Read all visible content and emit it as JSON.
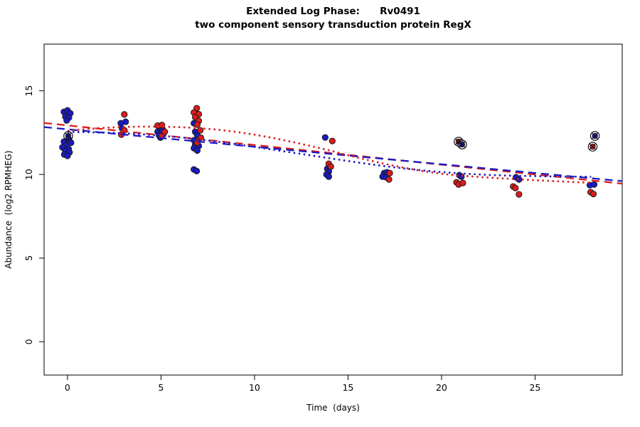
{
  "chart_data": {
    "type": "scatter",
    "title": "Extended Log Phase:      Rv0491",
    "subtitle": "two component sensory transduction protein RegX",
    "xlabel": "Time  (days)",
    "ylabel": "Abundance  (log2 RPMHEG)",
    "xlim": [
      -1.25,
      29.66
    ],
    "ylim": [
      -1.99,
      17.79
    ],
    "x_ticks": [
      0,
      5,
      10,
      15,
      20,
      25
    ],
    "y_ticks": [
      0,
      5,
      10,
      15
    ],
    "grid": false,
    "legend": "none",
    "colors": {
      "red": "#dc1c1c",
      "blue": "#1a1ac4",
      "darkred": "#8b1a1a",
      "point_stroke": "#1a1a1a",
      "axis": "#000000"
    },
    "series": [
      {
        "name": "blue-points",
        "color_key": "blue",
        "points": [
          [
            -0.19,
            13.74
          ],
          [
            0.0,
            13.83
          ],
          [
            0.15,
            13.66
          ],
          [
            -0.11,
            13.45
          ],
          [
            0.08,
            13.4
          ],
          [
            -0.04,
            13.23
          ],
          [
            0.08,
            12.08
          ],
          [
            -0.19,
            11.96
          ],
          [
            0.19,
            11.9
          ],
          [
            -0.08,
            11.74
          ],
          [
            -0.27,
            11.62
          ],
          [
            0.06,
            11.53
          ],
          [
            -0.11,
            11.4
          ],
          [
            0.11,
            11.32
          ],
          [
            -0.17,
            11.19
          ],
          [
            0.0,
            11.11
          ],
          [
            3.11,
            13.15
          ],
          [
            2.85,
            13.06
          ],
          [
            2.92,
            12.74
          ],
          [
            4.93,
            12.78
          ],
          [
            5.09,
            12.7
          ],
          [
            4.82,
            12.55
          ],
          [
            5.01,
            12.48
          ],
          [
            5.12,
            12.4
          ],
          [
            4.9,
            12.33
          ],
          [
            5.05,
            12.6
          ],
          [
            4.97,
            12.2
          ],
          [
            6.76,
            13.06
          ],
          [
            6.83,
            12.55
          ],
          [
            6.94,
            12.34
          ],
          [
            6.76,
            12.04
          ],
          [
            6.83,
            11.79
          ],
          [
            7.02,
            11.7
          ],
          [
            6.76,
            11.57
          ],
          [
            6.94,
            11.43
          ],
          [
            6.76,
            10.3
          ],
          [
            6.91,
            10.2
          ],
          [
            13.78,
            12.21
          ],
          [
            13.89,
            10.34
          ],
          [
            13.97,
            10.17
          ],
          [
            13.85,
            10.0
          ],
          [
            13.97,
            9.87
          ],
          [
            16.93,
            10.08
          ],
          [
            17.08,
            10.13
          ],
          [
            16.85,
            9.87
          ],
          [
            17.04,
            9.83
          ],
          [
            20.95,
            9.96
          ],
          [
            21.06,
            9.87
          ],
          [
            23.98,
            9.83
          ],
          [
            24.14,
            9.7
          ],
          [
            27.93,
            9.36
          ],
          [
            28.16,
            9.4
          ]
        ]
      },
      {
        "name": "red-points",
        "color_key": "red",
        "points": [
          [
            3.04,
            13.59
          ],
          [
            3.04,
            12.64
          ],
          [
            2.88,
            12.38
          ],
          [
            4.82,
            12.92
          ],
          [
            5.05,
            12.95
          ],
          [
            5.2,
            12.55
          ],
          [
            5.01,
            12.28
          ],
          [
            6.91,
            13.96
          ],
          [
            6.76,
            13.7
          ],
          [
            7.02,
            13.6
          ],
          [
            6.83,
            13.42
          ],
          [
            7.02,
            13.2
          ],
          [
            6.94,
            12.98
          ],
          [
            7.1,
            12.64
          ],
          [
            7.13,
            12.2
          ],
          [
            6.94,
            11.9
          ],
          [
            14.16,
            12.0
          ],
          [
            13.97,
            10.64
          ],
          [
            14.08,
            10.47
          ],
          [
            17.23,
            10.08
          ],
          [
            17.19,
            9.7
          ],
          [
            20.8,
            9.53
          ],
          [
            20.91,
            9.4
          ],
          [
            21.14,
            9.49
          ],
          [
            23.83,
            9.28
          ],
          [
            23.95,
            9.19
          ],
          [
            24.14,
            8.81
          ],
          [
            27.97,
            8.94
          ],
          [
            28.12,
            8.83
          ]
        ]
      }
    ],
    "highlighted_points": [
      {
        "x": 0.04,
        "y": 12.3,
        "color_key": "blue"
      },
      {
        "x": 20.91,
        "y": 11.96,
        "color_key": "darkred"
      },
      {
        "x": 21.1,
        "y": 11.79,
        "color_key": "blue"
      },
      {
        "x": 28.2,
        "y": 12.3,
        "color_key": "blue"
      },
      {
        "x": 28.08,
        "y": 11.66,
        "color_key": "red"
      }
    ],
    "trend_lines": [
      {
        "name": "red-linear-fit",
        "style": "dashed",
        "color_key": "red",
        "points": [
          [
            -1.25,
            13.08
          ],
          [
            29.66,
            9.45
          ]
        ]
      },
      {
        "name": "blue-linear-fit",
        "style": "dashed",
        "color_key": "blue",
        "points": [
          [
            -1.25,
            12.83
          ],
          [
            29.66,
            9.6
          ]
        ]
      },
      {
        "name": "red-loess-fit",
        "style": "dotted",
        "color_key": "red",
        "points": [
          [
            0,
            12.6
          ],
          [
            1,
            12.71
          ],
          [
            2,
            12.79
          ],
          [
            3,
            12.84
          ],
          [
            4,
            12.86
          ],
          [
            5,
            12.86
          ],
          [
            6,
            12.83
          ],
          [
            7,
            12.77
          ],
          [
            8,
            12.68
          ],
          [
            9,
            12.55
          ],
          [
            10,
            12.38
          ],
          [
            11,
            12.18
          ],
          [
            12,
            11.95
          ],
          [
            13,
            11.7
          ],
          [
            14,
            11.44
          ],
          [
            15,
            11.15
          ],
          [
            16,
            10.88
          ],
          [
            17,
            10.62
          ],
          [
            18,
            10.4
          ],
          [
            19,
            10.2
          ],
          [
            20,
            10.04
          ],
          [
            21,
            9.93
          ],
          [
            22,
            9.85
          ],
          [
            23,
            9.78
          ],
          [
            24,
            9.72
          ],
          [
            25,
            9.66
          ],
          [
            26,
            9.6
          ],
          [
            27,
            9.55
          ],
          [
            28,
            9.5
          ]
        ]
      },
      {
        "name": "blue-loess-fit",
        "style": "dotted",
        "color_key": "blue",
        "points": [
          [
            0,
            12.54
          ],
          [
            1,
            12.53
          ],
          [
            2,
            12.5
          ],
          [
            3,
            12.46
          ],
          [
            4,
            12.4
          ],
          [
            5,
            12.32
          ],
          [
            6,
            12.22
          ],
          [
            7,
            12.1
          ],
          [
            8,
            11.96
          ],
          [
            9,
            11.81
          ],
          [
            10,
            11.65
          ],
          [
            11,
            11.48
          ],
          [
            12,
            11.31
          ],
          [
            13,
            11.14
          ],
          [
            14,
            10.97
          ],
          [
            15,
            10.8
          ],
          [
            16,
            10.64
          ],
          [
            17,
            10.49
          ],
          [
            18,
            10.36
          ],
          [
            19,
            10.24
          ],
          [
            20,
            10.14
          ],
          [
            21,
            10.06
          ],
          [
            22,
            10.0
          ],
          [
            23,
            9.95
          ],
          [
            24,
            9.92
          ],
          [
            25,
            9.9
          ],
          [
            26,
            9.88
          ],
          [
            27,
            9.87
          ],
          [
            28,
            9.86
          ]
        ]
      }
    ]
  }
}
